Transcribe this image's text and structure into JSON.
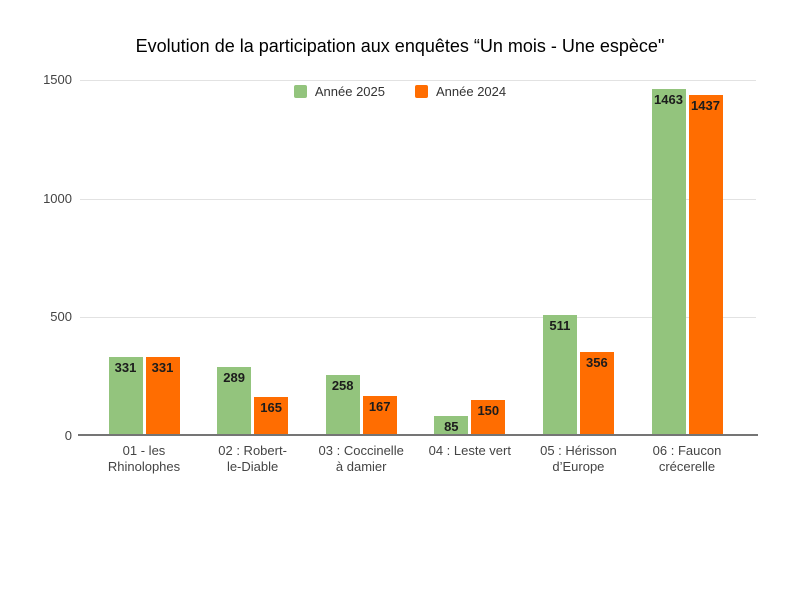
{
  "chart_data": {
    "type": "bar",
    "title": "Evolution de la participation aux enquêtes “Un mois - Une espèce\"",
    "categories": [
      "01 - les Rhinolophes",
      "02 : Robert-le-Diable",
      "03 : Coccinelle à damier",
      "04 : Leste vert",
      "05 : Hérisson d’Europe",
      "06 : Faucon crécerelle"
    ],
    "category_label_lines": [
      [
        "01 - les",
        "Rhinolophes"
      ],
      [
        "02 : Robert-",
        "le-Diable"
      ],
      [
        "03 : Coccinelle",
        "à damier"
      ],
      [
        "04 : Leste vert"
      ],
      [
        "05 : Hérisson",
        "d’Europe"
      ],
      [
        "06 : Faucon",
        "crécerelle"
      ]
    ],
    "series": [
      {
        "name": "Année 2025",
        "color": "#93c47d",
        "values": [
          331,
          289,
          258,
          85,
          511,
          1463
        ]
      },
      {
        "name": "Année 2024",
        "color": "#ff6d01",
        "values": [
          331,
          165,
          167,
          150,
          356,
          1437
        ]
      }
    ],
    "yticks": [
      0,
      500,
      1000,
      1500
    ],
    "ylim": [
      0,
      1500
    ],
    "xlabel": "",
    "ylabel": "",
    "grid": "horizontal",
    "legend_position": "top",
    "data_labels": true,
    "background_color": "#ffffff",
    "gridline_color": "#e2e2e2",
    "axis_line_color": "#757575",
    "data_label_color": "#1c1c1c"
  }
}
